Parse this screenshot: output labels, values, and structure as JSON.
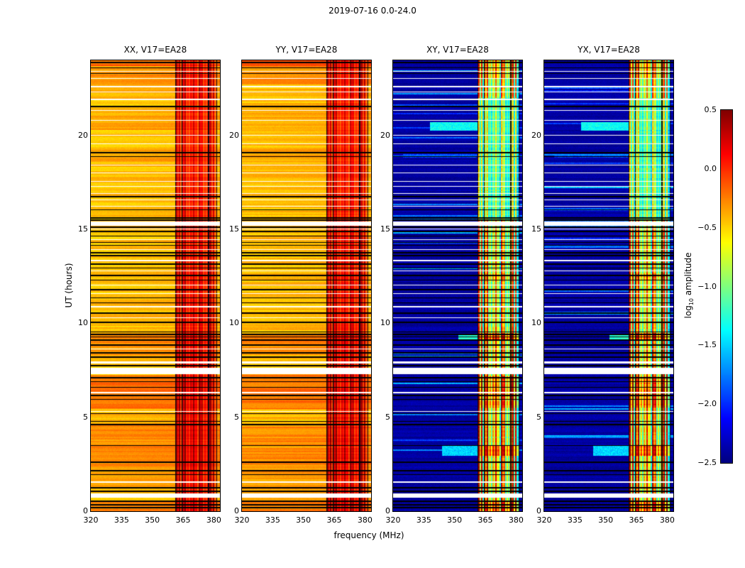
{
  "figure": {
    "title": "2019-07-16 0.0-24.0",
    "xlabel": "frequency (MHz)",
    "ylabel": "UT (hours)"
  },
  "chart_data": {
    "type": "heatmap",
    "title": "2019-07-16 0.0-24.0",
    "description": "Four dynamic-spectrum (waterfall) panels of log10 amplitude vs frequency and UT time for polarization products of antenna V17 vs EA28, with shared jet colorbar.",
    "panels": [
      {
        "label": "XX, V17=EA28",
        "code": "xx",
        "kind": "copol"
      },
      {
        "label": "YY, V17=EA28",
        "code": "yy",
        "kind": "copol"
      },
      {
        "label": "XY, V17=EA28",
        "code": "xy",
        "kind": "crosspol"
      },
      {
        "label": "YX, V17=EA28",
        "code": "yx",
        "kind": "crosspol"
      }
    ],
    "x": {
      "label": "frequency (MHz)",
      "range": [
        320,
        383
      ],
      "ticks": [
        320,
        335,
        350,
        365,
        380
      ],
      "unit": "MHz"
    },
    "y": {
      "label": "UT (hours)",
      "range": [
        0,
        24
      ],
      "ticks": [
        0,
        5,
        10,
        15,
        20
      ],
      "unit": "hours"
    },
    "colorbar": {
      "label": "log10 amplitude",
      "label_prefix": "log",
      "label_sub": "10",
      "label_suffix": " amplitude",
      "colormap": "jet",
      "range": [
        -2.5,
        0.5
      ],
      "ticks": [
        0.5,
        0.0,
        -0.5,
        -1.0,
        -1.5,
        -2.0,
        -2.5
      ]
    },
    "rfi": {
      "band": [
        361.5,
        381.3
      ],
      "dark_columns": [
        [
          361.35,
          0.22
        ],
        [
          364.6,
          0.15
        ],
        [
          377.55,
          0.33
        ],
        [
          381.35,
          0.2
        ]
      ]
    },
    "levels": {
      "copol_base": -0.45,
      "copol_warm": [
        [
          0,
          0.55,
          0.18
        ],
        [
          1.0,
          4.7,
          0.1
        ],
        [
          2.2,
          4.6,
          0.04
        ],
        [
          5.45,
          7.25,
          0.22
        ],
        [
          8.3,
          9.45,
          0.16
        ],
        [
          18.6,
          19.3,
          0.07
        ],
        [
          20.3,
          21.2,
          0.07
        ],
        [
          22.7,
          24,
          0.12
        ],
        [
          23.7,
          24,
          0.15
        ]
      ],
      "copol_rfi_time": [
        [
          0,
          9.5,
          1.0
        ],
        [
          9.5,
          15.5,
          0.88
        ],
        [
          15.5,
          22,
          0.8
        ],
        [
          22,
          24,
          0.92
        ]
      ],
      "copol_bursts": [
        [
          0,
          0.55,
          0.06
        ],
        [
          2.2,
          4.6,
          0.04
        ],
        [
          5.45,
          7.25,
          0.05
        ],
        [
          8.3,
          9.45,
          0.05
        ]
      ],
      "cross_base": -2.4,
      "cross_rfi_time": [
        [
          0,
          9.5,
          1.0
        ],
        [
          9.5,
          15.5,
          0.9
        ],
        [
          15.5,
          22,
          0.62
        ],
        [
          22,
          24,
          0.85
        ]
      ],
      "cross_bursts": [
        [
          0,
          0.55,
          0.5
        ],
        [
          2.95,
          3.5,
          0.55
        ],
        [
          5.5,
          7.2,
          0.35
        ],
        [
          9.1,
          9.48,
          0.55
        ],
        [
          12.3,
          12.65,
          0.3
        ],
        [
          23.0,
          24,
          0.3
        ]
      ],
      "cross_events": [
        [
          2.95,
          3.5,
          344,
          361.5,
          -1.5
        ],
        [
          9.15,
          9.45,
          352,
          361.5,
          -1.25
        ],
        [
          12.35,
          12.65,
          362,
          373,
          -1.0
        ],
        [
          18.82,
          19.02,
          325,
          361,
          -1.9
        ],
        [
          20.25,
          20.7,
          338,
          361.5,
          -1.35
        ]
      ]
    },
    "flags": {
      "white_ut": [
        [
          0.7,
          0.93
        ],
        [
          1.5,
          1.58
        ],
        [
          5.3,
          5.34
        ],
        [
          6.28,
          6.35
        ],
        [
          7.3,
          7.62
        ],
        [
          7.88,
          7.98
        ],
        [
          8.6,
          8.64
        ],
        [
          10.28,
          10.33
        ],
        [
          10.86,
          10.91
        ],
        [
          11.55,
          11.6
        ],
        [
          12.02,
          12.07
        ],
        [
          12.78,
          12.83
        ],
        [
          13.32,
          13.37
        ],
        [
          13.9,
          13.95
        ],
        [
          14.42,
          14.47
        ],
        [
          15.0,
          15.05
        ],
        [
          15.18,
          15.42
        ],
        [
          16.2,
          16.24
        ],
        [
          16.55,
          16.6
        ],
        [
          16.9,
          16.94
        ],
        [
          17.28,
          17.32
        ],
        [
          17.52,
          17.57
        ],
        [
          18.0,
          18.04
        ],
        [
          18.4,
          18.44
        ],
        [
          19.55,
          19.59
        ],
        [
          20.0,
          20.04
        ],
        [
          20.8,
          20.84
        ],
        [
          21.3,
          21.35
        ],
        [
          21.88,
          21.96
        ],
        [
          22.3,
          22.34
        ],
        [
          22.58,
          22.63
        ],
        [
          23.02,
          23.07
        ],
        [
          23.4,
          23.44
        ]
      ],
      "black_ut": [
        0.18,
        0.35,
        0.52,
        1.05,
        1.25,
        1.95,
        2.15,
        2.6,
        3.5,
        4.6,
        4.78,
        5.2,
        5.95,
        6.15,
        6.6,
        6.9,
        7.1,
        7.75,
        8.2,
        8.42,
        8.85,
        9.1,
        9.28,
        9.42,
        9.55,
        10.05,
        10.55,
        11.1,
        11.35,
        11.8,
        12.3,
        12.55,
        12.95,
        13.15,
        13.6,
        13.75,
        14.15,
        14.3,
        14.65,
        14.9,
        15.12,
        15.5,
        15.62,
        16.05,
        16.75,
        18.88,
        19.08,
        21.55,
        23.3,
        23.6,
        23.88
      ]
    }
  }
}
